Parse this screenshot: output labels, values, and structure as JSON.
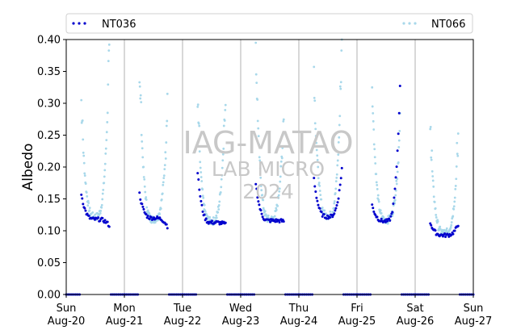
{
  "chart_data": {
    "type": "scatter",
    "title": "",
    "xlabel": "",
    "ylabel": "Albedo",
    "ylim": [
      0,
      0.4
    ],
    "xlim": [
      "2024-08-20",
      "2024-08-27"
    ],
    "yticks": [
      "0.00",
      "0.05",
      "0.10",
      "0.15",
      "0.20",
      "0.25",
      "0.30",
      "0.35",
      "0.40"
    ],
    "xticks": [
      {
        "date": "2024-08-20",
        "day": "Sun",
        "label": "Aug-20"
      },
      {
        "date": "2024-08-21",
        "day": "Mon",
        "label": "Aug-21"
      },
      {
        "date": "2024-08-22",
        "day": "Tue",
        "label": "Aug-22"
      },
      {
        "date": "2024-08-23",
        "day": "Wed",
        "label": "Aug-23"
      },
      {
        "date": "2024-08-24",
        "day": "Thu",
        "label": "Aug-24"
      },
      {
        "date": "2024-08-25",
        "day": "Fri",
        "label": "Aug-25"
      },
      {
        "date": "2024-08-26",
        "day": "Sat",
        "label": "Aug-26"
      },
      {
        "date": "2024-08-27",
        "day": "Sun",
        "label": "Aug-27"
      }
    ],
    "grid": "vertical at midnight",
    "legend_position": "top (spanning)",
    "watermark": [
      "IAG-MATAO",
      "LAB MICRO",
      "2024"
    ],
    "series": [
      {
        "name": "NT036",
        "color": "#0000cd",
        "days": [
          {
            "date": "2024-08-20",
            "noon_albedo": 0.118,
            "start": 0.158,
            "end": 0.108
          },
          {
            "date": "2024-08-21",
            "noon_albedo": 0.12,
            "start": 0.158,
            "end": 0.107
          },
          {
            "date": "2024-08-22",
            "noon_albedo": 0.113,
            "start": 0.192,
            "end": 0.11
          },
          {
            "date": "2024-08-23",
            "noon_albedo": 0.116,
            "start": 0.175,
            "end": 0.115
          },
          {
            "date": "2024-08-24",
            "noon_albedo": 0.122,
            "start": 0.182,
            "end": 0.198
          },
          {
            "date": "2024-08-25",
            "noon_albedo": 0.115,
            "start": 0.14,
            "end": 0.325
          },
          {
            "date": "2024-08-26",
            "noon_albedo": 0.093,
            "start": 0.113,
            "end": 0.11
          }
        ]
      },
      {
        "name": "NT066",
        "color": "#a8d8ea",
        "days": [
          {
            "date": "2024-08-20",
            "noon_albedo": 0.122,
            "start": 0.292,
            "end": 0.372
          },
          {
            "date": "2024-08-21",
            "noon_albedo": 0.118,
            "start": 0.346,
            "end": 0.284
          },
          {
            "date": "2024-08-22",
            "noon_albedo": 0.115,
            "start": 0.288,
            "end": 0.312
          },
          {
            "date": "2024-08-23",
            "noon_albedo": 0.118,
            "start": 0.378,
            "end": 0.278
          },
          {
            "date": "2024-08-24",
            "noon_albedo": 0.124,
            "start": 0.338,
            "end": 0.383
          },
          {
            "date": "2024-08-25",
            "noon_albedo": 0.117,
            "start": 0.322,
            "end": 0.262
          },
          {
            "date": "2024-08-26",
            "noon_albedo": 0.097,
            "start": 0.254,
            "end": 0.236
          }
        ]
      }
    ]
  }
}
